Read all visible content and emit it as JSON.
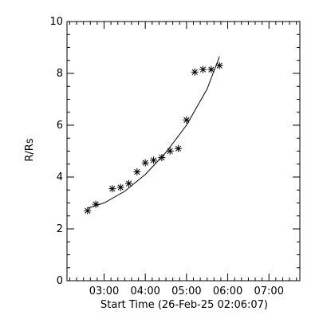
{
  "chart_data": {
    "type": "scatter",
    "title": "",
    "xlabel": "Start Time (26-Feb-25 02:06:07)",
    "ylabel": "R/Rs",
    "xlim": [
      "02:06",
      "07:45"
    ],
    "ylim": [
      0,
      10
    ],
    "x_ticks": [
      "03:00",
      "04:00",
      "05:00",
      "06:00",
      "07:00"
    ],
    "y_ticks": [
      "0",
      "2",
      "4",
      "6",
      "8",
      "10"
    ],
    "grid": false,
    "series": [
      {
        "marker": "asterisk",
        "points": [
          {
            "x": "02:36",
            "y": 2.7
          },
          {
            "x": "02:48",
            "y": 2.95
          },
          {
            "x": "03:12",
            "y": 3.55
          },
          {
            "x": "03:24",
            "y": 3.6
          },
          {
            "x": "03:36",
            "y": 3.75
          },
          {
            "x": "03:48",
            "y": 4.2
          },
          {
            "x": "04:00",
            "y": 4.55
          },
          {
            "x": "04:12",
            "y": 4.65
          },
          {
            "x": "04:24",
            "y": 4.75
          },
          {
            "x": "04:36",
            "y": 5.0
          },
          {
            "x": "04:48",
            "y": 5.1
          },
          {
            "x": "05:00",
            "y": 6.2
          },
          {
            "x": "05:12",
            "y": 8.05
          },
          {
            "x": "05:24",
            "y": 8.15
          },
          {
            "x": "05:36",
            "y": 8.15
          },
          {
            "x": "05:48",
            "y": 8.3
          }
        ]
      },
      {
        "type": "fit-curve",
        "points": [
          {
            "x": "02:36",
            "y": 2.8
          },
          {
            "x": "03:00",
            "y": 3.0
          },
          {
            "x": "03:30",
            "y": 3.45
          },
          {
            "x": "04:00",
            "y": 4.1
          },
          {
            "x": "04:30",
            "y": 4.95
          },
          {
            "x": "05:00",
            "y": 6.0
          },
          {
            "x": "05:30",
            "y": 7.4
          },
          {
            "x": "05:48",
            "y": 8.65
          }
        ]
      }
    ]
  }
}
